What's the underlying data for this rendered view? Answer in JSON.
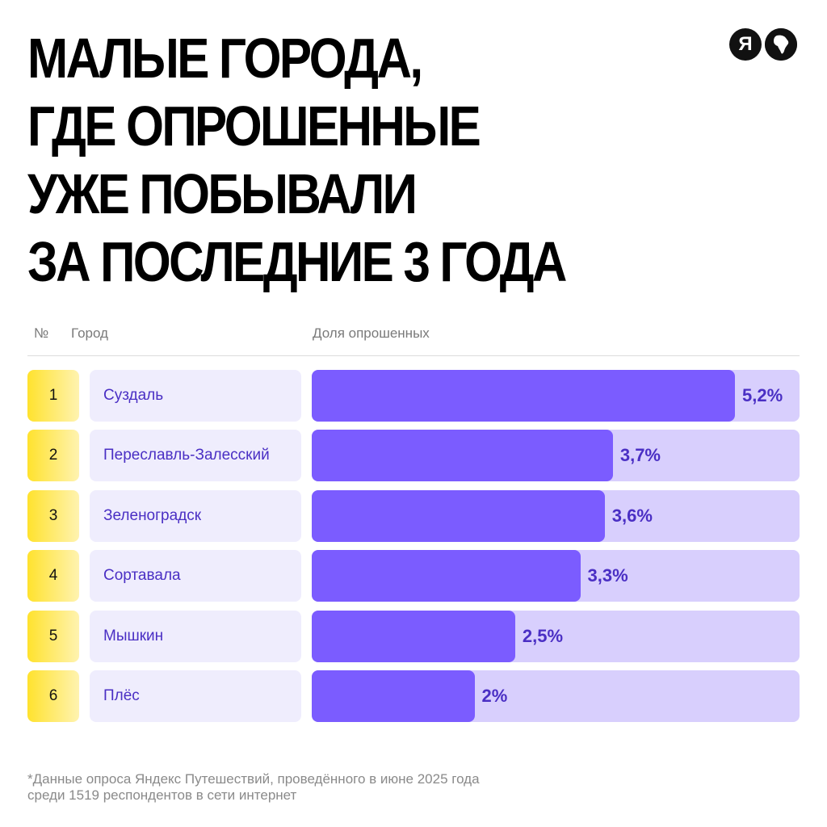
{
  "title_lines": [
    "МАЛЫЕ ГОРОДА,",
    "ГДЕ ОПРОШЕННЫЕ",
    "УЖЕ ПОБЫВАЛИ",
    "ЗА ПОСЛЕДНИЕ 3 ГОДА"
  ],
  "logos": [
    {
      "icon": "yandex-logo-icon",
      "glyph": "Я"
    },
    {
      "icon": "globe-africa-icon",
      "glyph": "🌍"
    }
  ],
  "header": {
    "num": "№",
    "city": "Город",
    "share": "Доля опрошенных"
  },
  "chart_data": {
    "type": "bar",
    "orientation": "horizontal",
    "title": "Малые города, где опрошенные уже побывали за последние 3 года",
    "xlabel": "Доля опрошенных",
    "ylabel": "Город",
    "unit": "%",
    "xlim": [
      0,
      6
    ],
    "categories": [
      "Суздаль",
      "Переславль-Залесский",
      "Зеленоградск",
      "Сортавала",
      "Мышкин",
      "Плёс"
    ],
    "ranks": [
      "1",
      "2",
      "3",
      "4",
      "5",
      "6"
    ],
    "values": [
      5.2,
      3.7,
      3.6,
      3.3,
      2.5,
      2.0
    ],
    "labels": [
      "5,2%",
      "3,7%",
      "3,6%",
      "3,3%",
      "2,5%",
      "2%"
    ]
  },
  "colors": {
    "bar": "#7b5cff",
    "track": "#d8cffd",
    "city_bg": "#efedfd",
    "text_accent": "#4a2fc4",
    "rank_bg": "#ffe22e"
  },
  "footnote_lines": [
    "*Данные опроса Яндекс Путешествий, проведённого в июне 2025 года",
    "среди 1519 респондентов в сети интернет"
  ]
}
